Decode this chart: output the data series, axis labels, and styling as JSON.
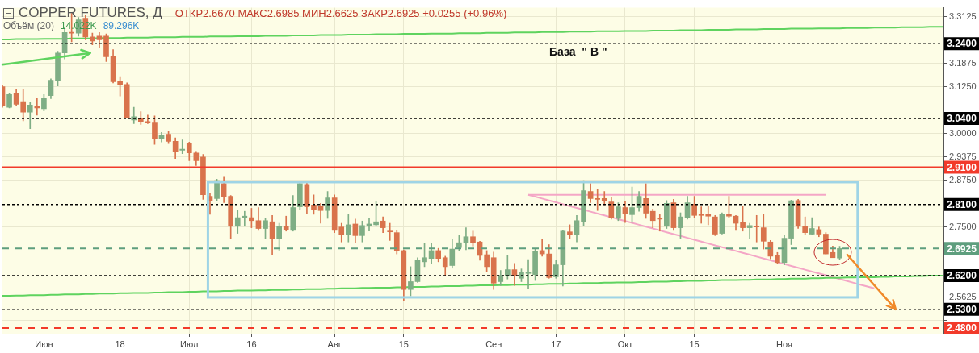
{
  "chart_data": {
    "type": "candlestick",
    "title": "COPPER FUTURES, Д",
    "subtitle": "ОТКР2.6670  МАКС2.6985  МИН2.6625  ЗАКР2.6925  +0.0255 (+0.96%)",
    "annotations": [
      "База  \" В \"",
      "Объём (20)",
      "14.022K",
      "89.296K"
    ],
    "categories": [
      null,
      null,
      null,
      null,
      null,
      null,
      "Июн",
      null,
      null,
      null,
      null,
      null,
      null,
      null,
      null,
      null,
      null,
      "18",
      null,
      null,
      null,
      null,
      null,
      null,
      null,
      null,
      null,
      "Июл",
      null,
      null,
      null,
      null,
      null,
      null,
      null,
      null,
      "16",
      null,
      null,
      null,
      null,
      null,
      null,
      null,
      null,
      null,
      null,
      null,
      "Авг",
      null,
      null,
      null,
      null,
      null,
      null,
      null,
      null,
      null,
      "15",
      null,
      null,
      null,
      null,
      null,
      null,
      null,
      null,
      null,
      null,
      null,
      null,
      "Сен",
      null,
      null,
      null,
      null,
      null,
      null,
      null,
      null,
      "17",
      null,
      null,
      null,
      null,
      null,
      null,
      null,
      null,
      null,
      "Окт",
      null,
      null,
      null,
      null,
      null,
      null,
      null,
      null,
      null,
      "15",
      null,
      null,
      null,
      null,
      null,
      null,
      null,
      null,
      null,
      null,
      null,
      null,
      "Ноя",
      null,
      null,
      null,
      null,
      null,
      null,
      null,
      null,
      null,
      null,
      null,
      null,
      null,
      null,
      null,
      null,
      null,
      null,
      null,
      null,
      null,
      null,
      null
    ],
    "ylim": [
      2.465,
      3.336
    ],
    "yticks": [
      3.3125,
      3.1875,
      {
        "value": 3.125,
        "label": "3.1250"
      },
      {
        "value": 3.0625,
        "label": null
      },
      {
        "value": 3,
        "label": "3.0000"
      },
      2.9375,
      {
        "value": 2.875,
        "label": "2.8750"
      },
      {
        "value": 2.75,
        "label": "2.7500"
      },
      2.5625,
      {
        "value": 2.5,
        "label": null
      }
    ],
    "grid": true,
    "ref_lines": [
      {
        "axis": "y",
        "value": 3.24,
        "label": "3.2400",
        "color": "#000000",
        "line_style": "dashed"
      },
      {
        "axis": "y",
        "value": 3.04,
        "label": "3.0400",
        "color": "#000000",
        "line_style": "dashed"
      },
      {
        "axis": "y",
        "value": 2.91,
        "label": "2.9100",
        "color": "#f23a2a",
        "line_style": "solid"
      },
      {
        "axis": "y",
        "value": 2.81,
        "label": "2.8100",
        "color": "#000000",
        "line_style": "dashed"
      },
      {
        "axis": "y",
        "value": 2.6925,
        "label": "2.6925",
        "color": "#5e9e7e",
        "line_style": "dashed"
      },
      {
        "axis": "y",
        "value": 2.62,
        "label": "2.6200",
        "color": "#000000",
        "line_style": "dashed"
      },
      {
        "axis": "y",
        "value": 2.53,
        "label": "2.5300",
        "color": "#000000",
        "line_style": "dashed"
      },
      {
        "axis": "y",
        "value": 2.48,
        "label": "2.4800",
        "color": "#f23a2a",
        "line_style": "dashed"
      }
    ],
    "series": [
      {
        "type": "candlestick",
        "ohlc": [
          [
            3.125,
            3.13,
            3.07,
            3.074
          ],
          [
            3.07,
            3.107,
            3.068,
            3.104
          ],
          [
            3.106,
            3.119,
            3.074,
            3.078
          ],
          [
            3.085,
            3.119,
            3.034,
            3.057
          ],
          [
            3.057,
            3.083,
            3.013,
            3.076
          ],
          [
            3.074,
            3.095,
            3.049,
            3.068
          ],
          [
            3.066,
            3.104,
            3.06,
            3.095
          ],
          [
            3.101,
            3.146,
            3.093,
            3.142
          ],
          [
            3.142,
            3.22,
            3.127,
            3.215
          ],
          [
            3.215,
            3.283,
            3.199,
            3.27
          ],
          [
            3.27,
            3.321,
            3.245,
            3.268
          ],
          [
            3.268,
            3.31,
            3.26,
            3.304
          ],
          [
            3.308,
            3.315,
            3.25,
            3.258
          ],
          [
            3.258,
            3.268,
            3.237,
            3.247
          ],
          [
            3.26,
            3.27,
            3.23,
            3.25
          ],
          [
            3.26,
            3.266,
            3.192,
            3.205
          ],
          [
            3.205,
            3.224,
            3.135,
            3.138
          ],
          [
            3.14,
            3.152,
            3.1,
            3.129
          ],
          [
            3.131,
            3.135,
            3.041,
            3.043
          ],
          [
            3.036,
            3.07,
            3.026,
            3.045
          ],
          [
            3.041,
            3.058,
            3.024,
            3.032
          ],
          [
            3.032,
            3.049,
            3.026,
            3.028
          ],
          [
            3.03,
            3.047,
            2.971,
            2.986
          ],
          [
            2.986,
            3.003,
            2.977,
            2.996
          ],
          [
            2.998,
            3.007,
            2.973,
            2.979
          ],
          [
            2.979,
            2.988,
            2.933,
            2.952
          ],
          [
            2.955,
            2.983,
            2.946,
            2.958
          ],
          [
            2.973,
            2.977,
            2.927,
            2.948
          ],
          [
            2.948,
            2.952,
            2.914,
            2.927
          ],
          [
            2.937,
            2.944,
            2.824,
            2.836
          ],
          [
            2.832,
            2.84,
            2.784,
            2.821
          ],
          [
            2.826,
            2.878,
            2.819,
            2.874
          ],
          [
            2.866,
            2.883,
            2.815,
            2.832
          ],
          [
            2.832,
            2.834,
            2.718,
            2.752
          ],
          [
            2.752,
            2.794,
            2.733,
            2.775
          ],
          [
            2.775,
            2.792,
            2.752,
            2.779
          ],
          [
            2.775,
            2.8,
            2.748,
            2.767
          ],
          [
            2.767,
            2.802,
            2.741,
            2.746
          ],
          [
            2.746,
            2.773,
            2.718,
            2.767
          ],
          [
            2.764,
            2.781,
            2.676,
            2.718
          ],
          [
            2.718,
            2.76,
            2.686,
            2.752
          ],
          [
            2.752,
            2.779,
            2.739,
            2.743
          ],
          [
            2.741,
            2.834,
            2.739,
            2.802
          ],
          [
            2.804,
            2.868,
            2.796,
            2.866
          ],
          [
            2.864,
            2.868,
            2.785,
            2.804
          ],
          [
            2.809,
            2.836,
            2.784,
            2.796
          ],
          [
            2.805,
            2.813,
            2.76,
            2.794
          ],
          [
            2.794,
            2.845,
            2.773,
            2.828
          ],
          [
            2.828,
            2.836,
            2.735,
            2.741
          ],
          [
            2.75,
            2.76,
            2.71,
            2.729
          ],
          [
            2.729,
            2.783,
            2.71,
            2.756
          ],
          [
            2.758,
            2.771,
            2.708,
            2.727
          ],
          [
            2.727,
            2.766,
            2.71,
            2.754
          ],
          [
            2.754,
            2.773,
            2.739,
            2.758
          ],
          [
            2.756,
            2.819,
            2.752,
            2.764
          ],
          [
            2.766,
            2.777,
            2.735,
            2.748
          ],
          [
            2.739,
            2.76,
            2.714,
            2.737
          ],
          [
            2.735,
            2.741,
            2.678,
            2.687
          ],
          [
            2.687,
            2.689,
            2.552,
            2.583
          ],
          [
            2.583,
            2.644,
            2.566,
            2.604
          ],
          [
            2.604,
            2.668,
            2.602,
            2.661
          ],
          [
            2.657,
            2.706,
            2.644,
            2.668
          ],
          [
            2.666,
            2.706,
            2.651,
            2.687
          ],
          [
            2.687,
            2.693,
            2.657,
            2.666
          ],
          [
            2.668,
            2.672,
            2.619,
            2.644
          ],
          [
            2.647,
            2.718,
            2.64,
            2.691
          ],
          [
            2.695,
            2.727,
            2.687,
            2.708
          ],
          [
            2.708,
            2.748,
            2.689,
            2.724
          ],
          [
            2.724,
            2.739,
            2.699,
            2.708
          ],
          [
            2.71,
            2.712,
            2.661,
            2.674
          ],
          [
            2.676,
            2.687,
            2.63,
            2.644
          ],
          [
            2.668,
            2.683,
            2.583,
            2.6
          ],
          [
            2.604,
            2.634,
            2.594,
            2.621
          ],
          [
            2.619,
            2.674,
            2.611,
            2.636
          ],
          [
            2.636,
            2.653,
            2.594,
            2.621
          ],
          [
            2.613,
            2.638,
            2.604,
            2.628
          ],
          [
            2.626,
            2.663,
            2.585,
            2.628
          ],
          [
            2.623,
            2.691,
            2.607,
            2.684
          ],
          [
            2.687,
            2.718,
            2.672,
            2.678
          ],
          [
            2.678,
            2.703,
            2.613,
            2.615
          ],
          [
            2.617,
            2.661,
            2.613,
            2.649
          ],
          [
            2.649,
            2.741,
            2.592,
            2.739
          ],
          [
            2.737,
            2.756,
            2.718,
            2.729
          ],
          [
            2.729,
            2.781,
            2.71,
            2.767
          ],
          [
            2.764,
            2.874,
            2.754,
            2.847
          ],
          [
            2.845,
            2.866,
            2.815,
            2.826
          ],
          [
            2.826,
            2.851,
            2.794,
            2.824
          ],
          [
            2.826,
            2.845,
            2.809,
            2.819
          ],
          [
            2.817,
            2.83,
            2.771,
            2.775
          ],
          [
            2.773,
            2.815,
            2.767,
            2.804
          ],
          [
            2.802,
            2.819,
            2.762,
            2.785
          ],
          [
            2.783,
            2.857,
            2.762,
            2.802
          ],
          [
            2.802,
            2.845,
            2.792,
            2.832
          ],
          [
            2.826,
            2.866,
            2.773,
            2.787
          ],
          [
            2.792,
            2.798,
            2.748,
            2.767
          ],
          [
            2.773,
            2.783,
            2.739,
            2.771
          ],
          [
            2.752,
            2.821,
            2.746,
            2.813
          ],
          [
            2.815,
            2.824,
            2.741,
            2.748
          ],
          [
            2.748,
            2.788,
            2.72,
            2.777
          ],
          [
            2.775,
            2.832,
            2.771,
            2.815
          ],
          [
            2.811,
            2.832,
            2.775,
            2.781
          ],
          [
            2.785,
            2.804,
            2.76,
            2.781
          ],
          [
            2.783,
            2.807,
            2.756,
            2.779
          ],
          [
            2.777,
            2.781,
            2.727,
            2.731
          ],
          [
            2.733,
            2.788,
            2.731,
            2.783
          ],
          [
            2.783,
            2.832,
            2.775,
            2.779
          ],
          [
            2.779,
            2.781,
            2.741,
            2.76
          ],
          [
            2.762,
            2.807,
            2.739,
            2.748
          ],
          [
            2.748,
            2.76,
            2.718,
            2.754
          ],
          [
            2.752,
            2.781,
            2.71,
            2.75
          ],
          [
            2.748,
            2.783,
            2.691,
            2.712
          ],
          [
            2.71,
            2.714,
            2.665,
            2.672
          ],
          [
            2.674,
            2.682,
            2.651,
            2.655
          ],
          [
            2.655,
            2.729,
            2.649,
            2.72
          ],
          [
            2.72,
            2.822,
            2.703,
            2.82
          ],
          [
            2.821,
            2.824,
            2.746,
            2.752
          ],
          [
            2.752,
            2.777,
            2.729,
            2.735
          ],
          [
            2.731,
            2.775,
            2.729,
            2.746
          ],
          [
            2.743,
            2.75,
            2.724,
            2.731
          ],
          [
            2.731,
            2.735,
            2.678,
            2.678
          ],
          [
            2.682,
            2.699,
            2.668,
            2.668
          ],
          [
            2.667,
            2.6985,
            2.6625,
            2.6925
          ],
          null,
          null,
          null,
          null,
          null,
          null,
          null,
          null,
          null,
          null,
          null,
          null,
          null,
          null,
          null
        ],
        "colors": [
          "#d9734c",
          "#7fae85",
          "#d9734c",
          "#d9734c",
          "#7fae85",
          "#d9734c",
          "#7fae85",
          "#7fae85",
          "#7fae85",
          "#7fae85",
          "#d9734c",
          "#7fae85",
          "#d9734c",
          "#d9734c",
          "#d9734c",
          "#d9734c",
          "#d9734c",
          "#d9734c",
          "#d9734c",
          "#7fae85",
          "#d9734c",
          "#d9734c",
          "#d9734c",
          "#7fae85",
          "#d9734c",
          "#d9734c",
          "#7fae85",
          "#d9734c",
          "#d9734c",
          "#d9734c",
          "#d9734c",
          "#7fae85",
          "#d9734c",
          "#d9734c",
          "#7fae85",
          "#7fae85",
          "#d9734c",
          "#d9734c",
          "#7fae85",
          "#d9734c",
          "#7fae85",
          "#d9734c",
          "#7fae85",
          "#7fae85",
          "#d9734c",
          "#d9734c",
          "#d9734c",
          "#7fae85",
          "#d9734c",
          "#d9734c",
          "#7fae85",
          "#d9734c",
          "#7fae85",
          "#7fae85",
          "#7fae85",
          "#d9734c",
          "#d9734c",
          "#d9734c",
          "#d9734c",
          "#7fae85",
          "#7fae85",
          "#7fae85",
          "#7fae85",
          "#d9734c",
          "#d9734c",
          "#7fae85",
          "#7fae85",
          "#7fae85",
          "#d9734c",
          "#d9734c",
          "#d9734c",
          "#d9734c",
          "#7fae85",
          "#7fae85",
          "#d9734c",
          "#7fae85",
          "#7fae85",
          "#7fae85",
          "#d9734c",
          "#d9734c",
          "#7fae85",
          "#7fae85",
          "#d9734c",
          "#7fae85",
          "#7fae85",
          "#d9734c",
          "#d9734c",
          "#d9734c",
          "#d9734c",
          "#7fae85",
          "#d9734c",
          "#7fae85",
          "#7fae85",
          "#d9734c",
          "#d9734c",
          "#d9734c",
          "#7fae85",
          "#d9734c",
          "#7fae85",
          "#7fae85",
          "#d9734c",
          "#d9734c",
          "#d9734c",
          "#d9734c",
          "#7fae85",
          "#d9734c",
          "#d9734c",
          "#d9734c",
          "#7fae85",
          "#d9734c",
          "#d9734c",
          "#d9734c",
          "#d9734c",
          "#7fae85",
          "#7fae85",
          "#d9734c",
          "#d9734c",
          "#7fae85",
          "#d9734c",
          "#d9734c",
          "#d9734c",
          "#7fae85",
          null,
          null,
          null,
          null,
          null,
          null,
          null,
          null,
          null,
          null,
          null,
          null,
          null,
          null,
          null
        ]
      },
      {
        "type": "line",
        "color": "#5fd35f",
        "values": [
          3.251,
          3.251,
          3.252,
          3.252,
          3.252,
          3.252,
          3.253,
          3.253,
          3.253,
          3.253,
          3.254,
          3.254,
          3.254,
          3.254,
          3.255,
          3.255,
          3.255,
          3.255,
          3.256,
          3.256,
          3.256,
          3.256,
          3.257,
          3.257,
          3.257,
          3.257,
          3.258,
          3.258,
          3.258,
          3.258,
          3.259,
          3.259,
          3.259,
          3.259,
          3.26,
          3.26,
          3.26,
          3.26,
          3.261,
          3.261,
          3.261,
          3.261,
          3.262,
          3.262,
          3.262,
          3.262,
          3.263,
          3.263,
          3.263,
          3.263,
          3.264,
          3.264,
          3.264,
          3.264,
          3.265,
          3.265,
          3.265,
          3.265,
          3.266,
          3.266,
          3.266,
          3.266,
          3.267,
          3.267,
          3.267,
          3.267,
          3.268,
          3.268,
          3.268,
          3.268,
          3.269,
          3.269,
          3.269,
          3.269,
          3.27,
          3.27,
          3.27,
          3.27,
          3.271,
          3.271,
          3.271,
          3.271,
          3.272,
          3.272,
          3.272,
          3.272,
          3.273,
          3.273,
          3.273,
          3.273,
          3.274,
          3.274,
          3.274,
          3.274,
          3.275,
          3.275,
          3.275,
          3.275,
          3.276,
          3.276,
          3.276,
          3.276,
          3.277,
          3.277,
          3.277,
          3.277,
          3.278,
          3.278,
          3.278,
          3.278,
          3.279,
          3.279,
          3.279,
          3.279,
          3.28,
          3.28,
          3.28,
          3.28,
          3.281,
          3.281,
          3.281,
          3.281,
          3.282,
          3.282,
          3.282,
          3.282,
          3.283,
          3.283,
          3.283,
          3.283,
          3.284,
          3.284,
          3.284,
          3.284,
          3.285,
          3.285,
          3.285
        ]
      },
      {
        "type": "line",
        "color": "#5fd35f",
        "values": [
          2.566,
          2.566,
          2.567,
          2.567,
          2.568,
          2.568,
          2.568,
          2.569,
          2.569,
          2.57,
          2.57,
          2.57,
          2.571,
          2.571,
          2.572,
          2.572,
          2.572,
          2.573,
          2.573,
          2.574,
          2.574,
          2.574,
          2.575,
          2.575,
          2.576,
          2.576,
          2.576,
          2.577,
          2.577,
          2.578,
          2.578,
          2.578,
          2.579,
          2.579,
          2.58,
          2.58,
          2.58,
          2.581,
          2.581,
          2.582,
          2.582,
          2.582,
          2.583,
          2.583,
          2.584,
          2.584,
          2.584,
          2.585,
          2.585,
          2.586,
          2.586,
          2.586,
          2.587,
          2.587,
          2.588,
          2.588,
          2.588,
          2.589,
          2.589,
          2.59,
          2.59,
          2.59,
          2.591,
          2.591,
          2.592,
          2.592,
          2.592,
          2.593,
          2.593,
          2.594,
          2.594,
          2.594,
          2.595,
          2.595,
          2.596,
          2.596,
          2.596,
          2.597,
          2.597,
          2.598,
          2.598,
          2.598,
          2.599,
          2.599,
          2.6,
          2.6,
          2.6,
          2.601,
          2.601,
          2.602,
          2.602,
          2.602,
          2.603,
          2.603,
          2.604,
          2.604,
          2.604,
          2.605,
          2.605,
          2.606,
          2.606,
          2.606,
          2.607,
          2.607,
          2.608,
          2.608,
          2.608,
          2.609,
          2.609,
          2.61,
          2.61,
          2.61,
          2.611,
          2.611,
          2.612,
          2.612,
          2.612,
          2.613,
          2.613,
          2.614,
          2.614,
          2.614,
          2.615,
          2.615,
          2.616,
          2.616,
          2.616,
          2.617,
          2.617,
          2.618,
          2.618,
          2.618,
          2.619,
          2.619,
          2.62,
          2.62,
          2.62
        ]
      },
      {
        "type": "line",
        "color": "#f4a6c6",
        "values": [
          null,
          null,
          null,
          null,
          null,
          null,
          null,
          null,
          null,
          null,
          null,
          null,
          null,
          null,
          null,
          null,
          null,
          null,
          null,
          null,
          null,
          null,
          null,
          null,
          null,
          null,
          null,
          null,
          null,
          null,
          null,
          null,
          null,
          null,
          null,
          null,
          null,
          null,
          null,
          null,
          null,
          null,
          null,
          null,
          null,
          null,
          null,
          null,
          null,
          null,
          null,
          null,
          null,
          null,
          null,
          null,
          null,
          null,
          null,
          null,
          null,
          null,
          null,
          null,
          null,
          null,
          null,
          null,
          null,
          null,
          null,
          null,
          null,
          null,
          null,
          null,
          2.836,
          2.836,
          2.836,
          2.836,
          2.836,
          2.836,
          2.836,
          2.836,
          2.836,
          2.836,
          2.836,
          2.836,
          2.836,
          2.836,
          2.836,
          2.836,
          2.836,
          2.836,
          2.836,
          2.836,
          2.836,
          2.836,
          2.836,
          2.836,
          2.836,
          2.836,
          2.836,
          2.836,
          2.836,
          2.836,
          2.836,
          2.836,
          2.836,
          2.836,
          2.836,
          2.836,
          2.836,
          2.836,
          2.836,
          2.836,
          2.836,
          2.836,
          2.836,
          2.836,
          null,
          null,
          null,
          null,
          null,
          null,
          null,
          null,
          null,
          null,
          null,
          null,
          null,
          null,
          null,
          null,
          null
        ]
      },
      {
        "type": "line",
        "color": "#f4a6c6",
        "values": [
          null,
          null,
          null,
          null,
          null,
          null,
          null,
          null,
          null,
          null,
          null,
          null,
          null,
          null,
          null,
          null,
          null,
          null,
          null,
          null,
          null,
          null,
          null,
          null,
          null,
          null,
          null,
          null,
          null,
          null,
          null,
          null,
          null,
          null,
          null,
          null,
          null,
          null,
          null,
          null,
          null,
          null,
          null,
          null,
          null,
          null,
          null,
          null,
          null,
          null,
          null,
          null,
          null,
          null,
          null,
          null,
          null,
          null,
          null,
          null,
          null,
          null,
          null,
          null,
          null,
          null,
          null,
          null,
          null,
          null,
          null,
          null,
          null,
          null,
          null,
          null,
          2.836,
          2.831,
          2.826,
          2.821,
          2.816,
          2.811,
          2.806,
          2.801,
          2.796,
          2.791,
          2.786,
          2.781,
          2.776,
          2.771,
          2.766,
          2.761,
          2.756,
          2.751,
          2.746,
          2.741,
          2.736,
          2.731,
          2.726,
          2.721,
          2.716,
          2.711,
          2.706,
          2.701,
          2.696,
          2.691,
          2.686,
          2.681,
          2.676,
          2.671,
          2.666,
          2.661,
          2.656,
          2.651,
          2.646,
          2.641,
          2.636,
          2.631,
          2.626,
          2.621,
          2.616,
          2.611,
          2.606,
          2.601,
          2.596,
          2.591,
          2.586,
          null,
          null,
          null,
          null,
          null,
          null,
          null,
          null,
          null,
          null
        ]
      }
    ]
  }
}
